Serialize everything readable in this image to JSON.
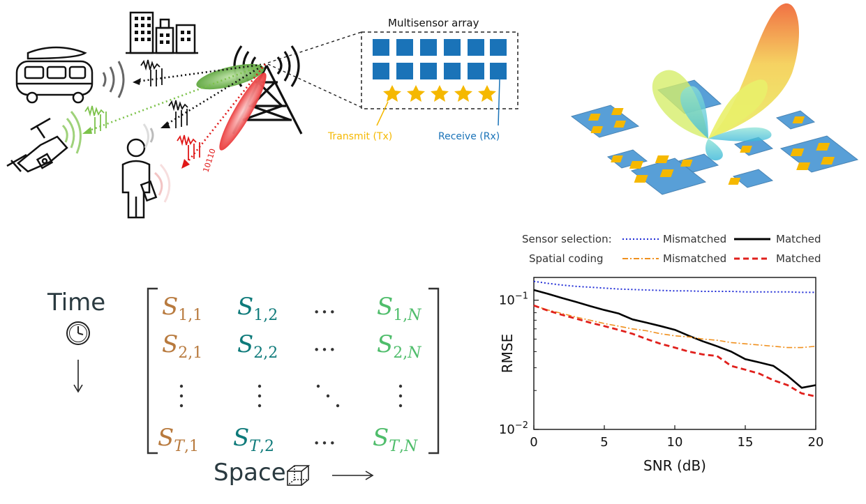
{
  "multisensor": {
    "title": "Multisensor array",
    "transmit_label": "Transmit (Tx)",
    "receive_label": "Receive (Rx)",
    "bit_label": "10110"
  },
  "matrix": {
    "time_label": "Time",
    "space_label": "Space",
    "rows": [
      {
        "c1": "S",
        "s1": "1,1",
        "c2": "S",
        "s2": "1,2",
        "dots": "…",
        "c3": "S",
        "s3a": "1,",
        "s3b": "N"
      },
      {
        "c1": "S",
        "s1": "2,1",
        "c2": "S",
        "s2": "2,2",
        "dots": "…",
        "c3": "S",
        "s3a": "2,",
        "s3b": "N"
      }
    ],
    "last_row": {
      "c1": "S",
      "s1b": "T",
      "s1a": ",1",
      "c2": "S",
      "s2b": "T",
      "s2a": ",2",
      "dots": "…",
      "c3": "S",
      "s3b": "T",
      "s3c": "N",
      "s3a": ","
    }
  },
  "legend": {
    "row1_label": "Sensor selection:",
    "row2_label": "Spatial coding",
    "mismatched": "Mismatched",
    "matched": "Matched"
  },
  "colors": {
    "sensor_mismatched": "#1f2bd6",
    "sensor_matched": "#000000",
    "coding_mismatched": "#f0901e",
    "coding_matched": "#e0201c",
    "rx_blue": "#1a73b8",
    "tx_gold": "#f5b800"
  },
  "chart_data": {
    "type": "line",
    "xlabel": "SNR (dB)",
    "ylabel": "RMSE",
    "xlim": [
      0,
      20
    ],
    "ylim": [
      0.01,
      0.15
    ],
    "yscale": "log",
    "xticks": [
      "0",
      "5",
      "10",
      "15",
      "20"
    ],
    "yticks": [
      {
        "base": "10",
        "exp": "−1"
      },
      {
        "base": "10",
        "exp": "−2"
      }
    ],
    "x": [
      0,
      1,
      2,
      3,
      4,
      5,
      6,
      7,
      8,
      9,
      10,
      11,
      12,
      13,
      14,
      15,
      16,
      17,
      18,
      19,
      20
    ],
    "series": [
      {
        "group": "Sensor selection",
        "name": "Mismatched",
        "style": "dotted",
        "values": [
          0.14,
          0.135,
          0.131,
          0.128,
          0.126,
          0.124,
          0.122,
          0.121,
          0.12,
          0.119,
          0.118,
          0.118,
          0.117,
          0.117,
          0.117,
          0.116,
          0.116,
          0.116,
          0.116,
          0.115,
          0.115
        ]
      },
      {
        "group": "Sensor selection",
        "name": "Matched",
        "style": "solid",
        "values": [
          0.12,
          0.112,
          0.104,
          0.097,
          0.09,
          0.084,
          0.079,
          0.071,
          0.067,
          0.063,
          0.059,
          0.053,
          0.048,
          0.044,
          0.04,
          0.035,
          0.033,
          0.031,
          0.026,
          0.021,
          0.022
        ]
      },
      {
        "group": "Spatial coding",
        "name": "Mismatched",
        "style": "dashdot",
        "values": [
          0.091,
          0.084,
          0.079,
          0.074,
          0.07,
          0.066,
          0.063,
          0.06,
          0.058,
          0.055,
          0.053,
          0.052,
          0.05,
          0.049,
          0.047,
          0.046,
          0.045,
          0.044,
          0.043,
          0.043,
          0.044
        ]
      },
      {
        "group": "Spatial coding",
        "name": "Matched",
        "style": "dashed",
        "values": [
          0.091,
          0.083,
          0.077,
          0.072,
          0.067,
          0.063,
          0.059,
          0.055,
          0.05,
          0.046,
          0.043,
          0.04,
          0.038,
          0.037,
          0.031,
          0.029,
          0.027,
          0.024,
          0.022,
          0.019,
          0.018
        ]
      }
    ]
  }
}
